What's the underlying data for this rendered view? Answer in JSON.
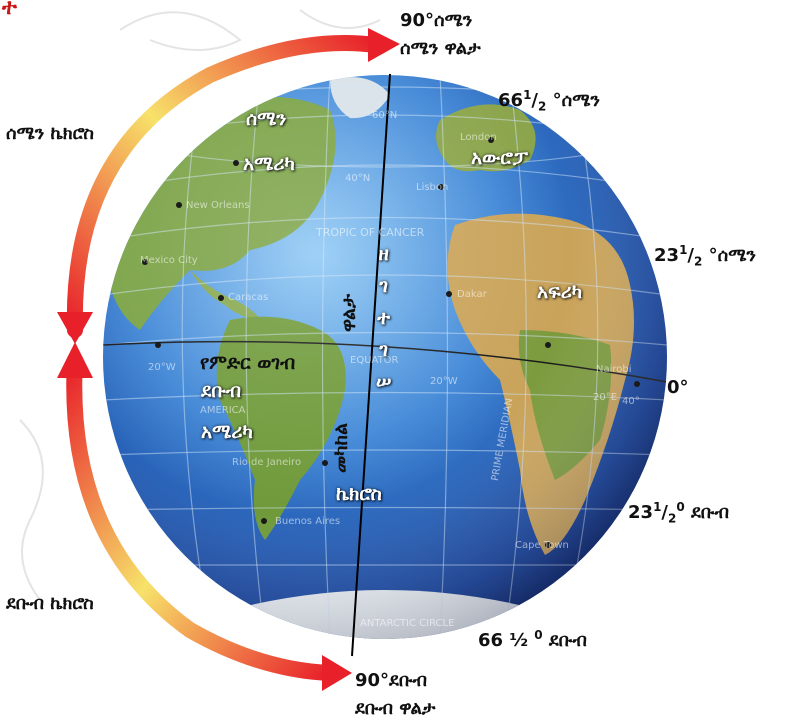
{
  "corner_mark": "ተ",
  "labels": {
    "north_pole_deg": "90°ሰሜን",
    "north_pole_name": "ሰሜን ዋልታ",
    "lat_66_n_int": "66",
    "lat_66_n_sup": "1",
    "lat_66_n_sub": "2",
    "lat_66_n_unit": "°ሰሜን",
    "lat_23_n_int": "23",
    "lat_23_n_sup": "1",
    "lat_23_n_sub": "2",
    "lat_23_n_unit": "°ሰሜን",
    "equator_deg": "0°",
    "lat_23_s_int": "23",
    "lat_23_s_sup": "1",
    "lat_23_s_sub": "2",
    "lat_23_s_deg": "0",
    "lat_23_s_unit": "ደቡብ",
    "lat_66_s": "66 ½",
    "lat_66_s_deg": "0",
    "lat_66_s_unit": "ደቡብ",
    "south_pole_deg": "90°ደቡብ",
    "south_pole_name": "ደቡብ ዋልታ",
    "north_hemisphere": "ሰሜን ኬክሮስ",
    "south_hemisphere": "ደቡብ ኬክሮስ"
  },
  "continents": {
    "north_america_1": "ሰሜን",
    "north_america_2": "አሜሪካ",
    "europe": "አውሮፓ",
    "africa": "አፍሪካ",
    "south_america_1": "ደቡብ",
    "south_america_2": "አሜሪካ",
    "prime_meridian": "የምድር ወገብ",
    "latitude_word": "ኬክሮስ"
  },
  "axis_text": {
    "upper": "ዋልታ",
    "lower": "መካከል",
    "vertical_chars": [
      "ዘ",
      "ገ",
      "ተ",
      "ገ",
      "ሠ"
    ]
  },
  "map_labels": {
    "tropic": "TROPIC OF CANCER",
    "equator": "EQUATOR",
    "new_orleans": "New Orleans",
    "mexico_city": "Mexico City",
    "caracas": "Caracas",
    "lisbon": "Lisbon",
    "london": "London",
    "dakar": "Dakar",
    "nairobi": "Nairobi",
    "america": "AMERICA",
    "rio": "Rio de Janeiro",
    "buenos_aires": "Buenos Aires",
    "cape_town": "Cape Town",
    "antarctic": "ANTARCTIC CIRCLE",
    "meridian": "PRIME MERIDIAN",
    "deg_20w_a": "20°W",
    "deg_20w_b": "20°W",
    "deg_40n": "40°N",
    "deg_60n": "60°N",
    "deg_20e": "20°E",
    "deg_40": "40°"
  },
  "colors": {
    "ocean_light": "#5aa7e6",
    "ocean_dark": "#0a2a78",
    "land_green": "#6f9a3a",
    "land_tan": "#c9a35a",
    "arrow_red": "#e8202a",
    "arrow_yellow": "#f7e26a",
    "axis_line": "#000000"
  }
}
